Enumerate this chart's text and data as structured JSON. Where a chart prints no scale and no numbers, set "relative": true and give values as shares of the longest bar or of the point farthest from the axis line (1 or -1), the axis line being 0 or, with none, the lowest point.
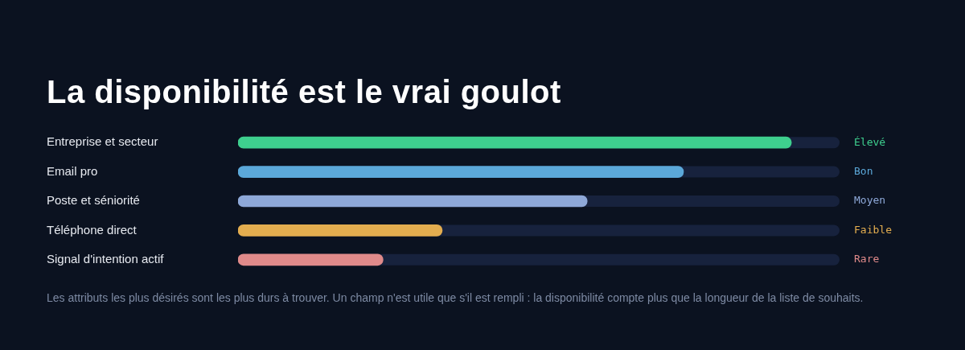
{
  "chart_data": {
    "type": "bar",
    "orientation": "horizontal",
    "relative": true,
    "title": "La disponibilité est le vrai goulot",
    "categories": [
      "Entreprise et secteur",
      "Email pro",
      "Poste et séniorité",
      "Téléphone direct",
      "Signal d'intention actif"
    ],
    "values": [
      1,
      0.805,
      0.631,
      0.369,
      0.262
    ],
    "colors": [
      "#3ecf8e",
      "#5ba8d9",
      "#8ea8d8",
      "#e3ad4f",
      "#e08a8a"
    ],
    "annotations": [
      "Élevé",
      "Bon",
      "Moyen",
      "Faible",
      "Rare",
      "Les attributs les plus désirés sont les plus durs à trouver. Un champ n'est utile que s'il est rempli : la disponibilité compte plus que la longueur de la liste de souhaits."
    ]
  }
}
